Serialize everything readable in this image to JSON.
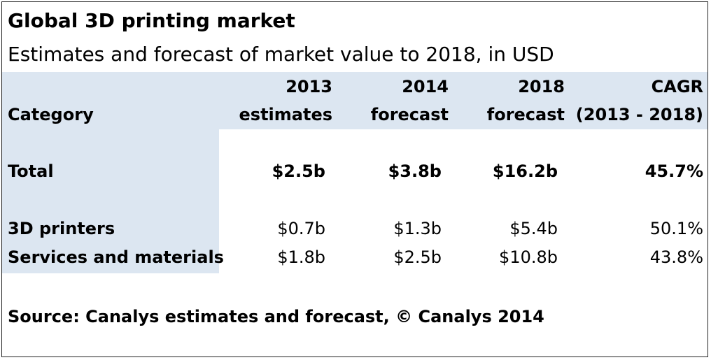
{
  "chart_data": {
    "type": "table",
    "title": "Global 3D printing market",
    "subtitle": "Estimates and forecast of market value to 2018, in USD",
    "header": {
      "category": "Category",
      "columns": [
        {
          "line1": "2013",
          "line2": "estimates"
        },
        {
          "line1": "2014",
          "line2": "forecast"
        },
        {
          "line1": "2018",
          "line2": "forecast"
        },
        {
          "line1": "CAGR",
          "line2": "(2013 - 2018)"
        }
      ]
    },
    "rows": [
      {
        "label": "Total",
        "values": [
          "$2.5b",
          "$3.8b",
          "$16.2b",
          "45.7%"
        ],
        "bold": true
      },
      {
        "label": "3D printers",
        "values": [
          "$0.7b",
          "$1.3b",
          "$5.4b",
          "50.1%"
        ],
        "bold": false
      },
      {
        "label": "Services and materials",
        "values": [
          "$1.8b",
          "$2.5b",
          "$10.8b",
          "43.8%"
        ],
        "bold": false
      }
    ],
    "source": "Source: Canalys estimates and forecast, © Canalys 2014",
    "colors": {
      "header_band": "#dce6f1",
      "text": "#000000",
      "border": "#222222"
    }
  }
}
